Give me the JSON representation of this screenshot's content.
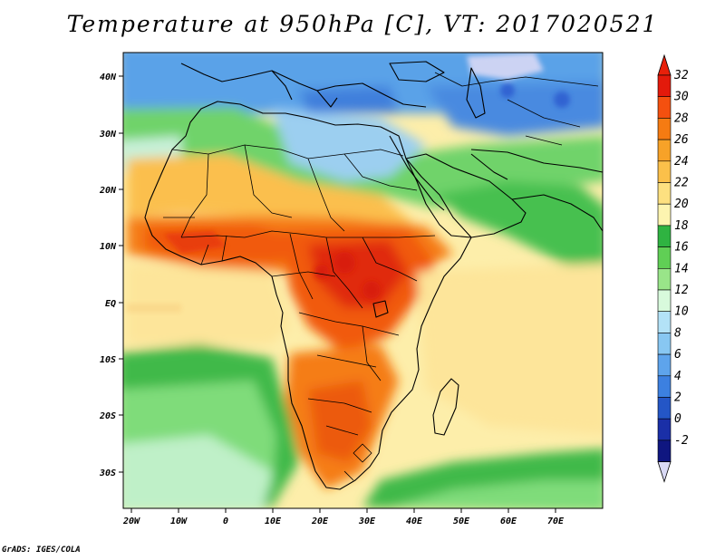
{
  "title": "Temperature at 950hPa [C], VT: 2017020521",
  "credit": "GrADS: IGES/COLA",
  "lat_labels": [
    "40N",
    "30N",
    "20N",
    "10N",
    "EQ",
    "10S",
    "20S",
    "30S"
  ],
  "lon_labels": [
    "20W",
    "10W",
    "0",
    "10E",
    "20E",
    "30E",
    "40E",
    "50E",
    "60E",
    "70E"
  ],
  "colorbar": {
    "labels": [
      "32",
      "30",
      "28",
      "26",
      "24",
      "22",
      "20",
      "18",
      "16",
      "14",
      "12",
      "10",
      "8",
      "6",
      "4",
      "2",
      "0",
      "-2"
    ],
    "colors_top_to_bottom": [
      "#e31a0b",
      "#f4500f",
      "#f57b12",
      "#f7a228",
      "#fbc04a",
      "#fde080",
      "#fdf4b0",
      "#2fb341",
      "#60cf55",
      "#99e589",
      "#d8fadc",
      "#b3e2f7",
      "#88c7f2",
      "#5ea4ec",
      "#3c80e0",
      "#2456c6",
      "#1a2fa7",
      "#0f1680"
    ],
    "over_color": "#e8200a",
    "under_color": "#d9d9f5"
  },
  "map_extent": {
    "lon": [
      -22,
      80
    ],
    "lat": [
      -37,
      45
    ]
  },
  "field_regions": {
    "cold_north": "Mediterranean, Europe and Central Asia below 12 C",
    "hot_core": "Central Africa and Sahel 28-32 C",
    "ocean_south": "Southern ocean 16-20 C"
  }
}
